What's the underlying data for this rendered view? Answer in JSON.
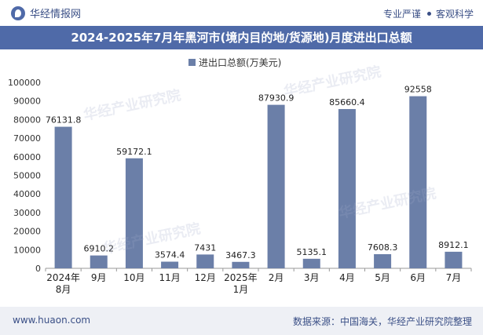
{
  "header": {
    "brand": "华经情报网",
    "tag1": "专业严谨",
    "tag2": "客观科学"
  },
  "title": "2024-2025年7月年黑河市(境内目的地/货源地)月度进出口总额",
  "footer": {
    "url": "www.huaon.com",
    "source": "数据来源：中国海关，华经产业研究院整理"
  },
  "watermark": "华经产业研究院",
  "chart_data": {
    "type": "bar",
    "title": "2024-2025年7月年黑河市(境内目的地/货源地)月度进出口总额",
    "legend": "进出口总额(万美元)",
    "legend_position": "top-center",
    "categories": [
      "2024年\n8月",
      "9月",
      "10月",
      "11月",
      "12月",
      "2025年\n1月",
      "2月",
      "3月",
      "4月",
      "5月",
      "6月",
      "7月"
    ],
    "values": [
      76131.8,
      6910.2,
      59172.1,
      3574.4,
      7431,
      3467.3,
      87930.9,
      5135.1,
      85660.4,
      7608.3,
      92558,
      8912.1
    ],
    "value_labels": [
      "76131.8",
      "6910.2",
      "59172.1",
      "3574.4",
      "7431",
      "3467.3",
      "87930.9",
      "5135.1",
      "85660.4",
      "7608.3",
      "92558",
      "8912.1"
    ],
    "ylim": [
      0,
      100000
    ],
    "yticks": [
      0,
      10000,
      20000,
      30000,
      40000,
      50000,
      60000,
      70000,
      80000,
      90000,
      100000
    ],
    "bar_color": "#6b7fa8",
    "grid": false
  }
}
